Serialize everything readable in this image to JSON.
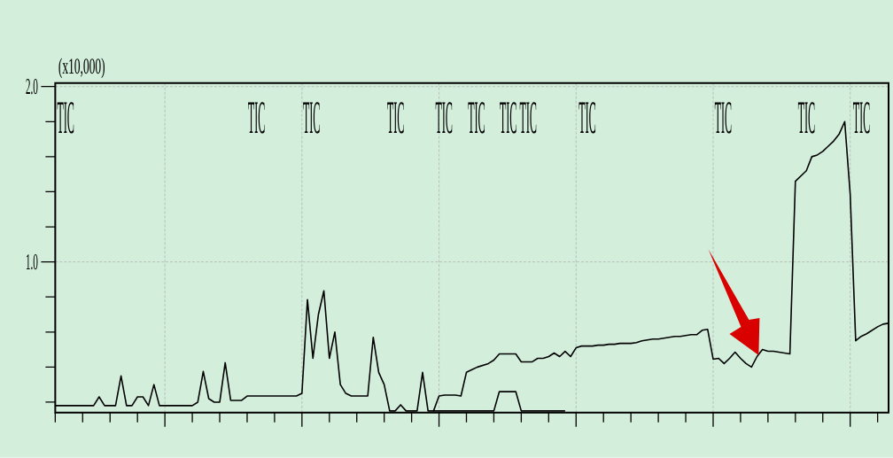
{
  "chart_data": {
    "type": "line",
    "ylabel": "(x10,000)",
    "annotations": [
      "TIC",
      "TIC",
      "TIC",
      "TIC",
      "TIC",
      "TIC",
      "TIC",
      "TIC",
      "TIC",
      "TIC",
      "TIC",
      "TIC"
    ],
    "categories": [
      null,
      null,
      null,
      null,
      null,
      null,
      null,
      null,
      null,
      null,
      null,
      null,
      null,
      null,
      null,
      null,
      null,
      null,
      null,
      null,
      null,
      null,
      null,
      null,
      null,
      null,
      null,
      null,
      null,
      null,
      null,
      null,
      null,
      null,
      null,
      null,
      null,
      null,
      null,
      null,
      null,
      null,
      null,
      null,
      null,
      null,
      null,
      null,
      null,
      null,
      null,
      null,
      null,
      null,
      null,
      null,
      null,
      null,
      null,
      null,
      null,
      null,
      null,
      null,
      null,
      null,
      null,
      null,
      null,
      null,
      null,
      null,
      null,
      null,
      null,
      null,
      null,
      null,
      null,
      null,
      null,
      null,
      null,
      null,
      null,
      null,
      null,
      null,
      null,
      null,
      null,
      null,
      null,
      null,
      null,
      null,
      null,
      null,
      null,
      null,
      null,
      null,
      null,
      null,
      null,
      null,
      null,
      null,
      null,
      null,
      null,
      null,
      null,
      null,
      null,
      null,
      null,
      null,
      null,
      null,
      null,
      null,
      null,
      null,
      null,
      null,
      null,
      null,
      null,
      null,
      null,
      null,
      null,
      null,
      null,
      null,
      null,
      null,
      null,
      null,
      null,
      null,
      null,
      null,
      null,
      null,
      null,
      null,
      null,
      null,
      null,
      null,
      null
    ],
    "series": [
      {
        "color": "#000000",
        "values": [
          0.18,
          0.18,
          0.18,
          0.18,
          0.18,
          0.18,
          0.18,
          0.18,
          0.23,
          0.18,
          0.18,
          0.18,
          0.35,
          0.18,
          0.18,
          0.23,
          0.23,
          0.18,
          0.3,
          0.18,
          0.18,
          0.18,
          0.18,
          0.18,
          0.18,
          0.18,
          0.2,
          0.375,
          0.22,
          0.2,
          0.2,
          0.425,
          0.21,
          0.21,
          0.21,
          0.235,
          0.235,
          0.235,
          0.235,
          0.235,
          0.235,
          0.235,
          0.235,
          0.235,
          0.235,
          0.25,
          0.785,
          0.45,
          0.7,
          0.835,
          0.45,
          0.6,
          0.3,
          0.25,
          0.235,
          0.235,
          0.235,
          0.235,
          0.57,
          0.37,
          0.3,
          0.15,
          0.15,
          0.185,
          0.15,
          0.15,
          0.15,
          0.37,
          0.15,
          0.15,
          0.235,
          0.24,
          0.24,
          0.24,
          0.235,
          0.37,
          0.385,
          0.4,
          0.41,
          0.42,
          0.44,
          0.475,
          0.475,
          0.475,
          0.475,
          0.43,
          0.43,
          0.43,
          0.45,
          0.45,
          0.46,
          0.48,
          0.46,
          0.49,
          0.46,
          0.51,
          0.52,
          0.52,
          0.52,
          0.525,
          0.525,
          0.53,
          0.53,
          0.535,
          0.535,
          0.535,
          0.54,
          0.55,
          0.555,
          0.56,
          0.56,
          0.565,
          0.57,
          0.575,
          0.575,
          0.58,
          0.585,
          0.585,
          0.61,
          0.615,
          0.445,
          0.45,
          0.42,
          0.45,
          0.485,
          0.45,
          0.42,
          0.4,
          0.46,
          0.5,
          0.49,
          0.49,
          0.485,
          0.48,
          0.475,
          1.46,
          1.49,
          1.52,
          1.6,
          1.61,
          1.63,
          1.66,
          1.69,
          1.73,
          1.8,
          1.385,
          0.55,
          0.575,
          0.59,
          0.61,
          0.63,
          0.645,
          0.65
        ]
      },
      {
        "color": "#000000",
        "values": [
          null,
          null,
          null,
          null,
          null,
          null,
          null,
          null,
          null,
          null,
          null,
          null,
          null,
          null,
          null,
          null,
          null,
          null,
          null,
          null,
          null,
          null,
          null,
          null,
          null,
          null,
          null,
          null,
          null,
          null,
          null,
          null,
          null,
          null,
          null,
          null,
          null,
          null,
          null,
          null,
          null,
          null,
          null,
          null,
          null,
          null,
          null,
          null,
          null,
          null,
          null,
          null,
          null,
          null,
          null,
          null,
          null,
          null,
          null,
          null,
          null,
          null,
          null,
          null,
          null,
          null,
          null,
          null,
          null,
          0.15,
          0.15,
          0.15,
          0.15,
          0.15,
          0.15,
          0.15,
          0.15,
          0.15,
          0.15,
          0.15,
          0.15,
          0.26,
          0.26,
          0.26,
          0.26,
          0.15,
          0.15,
          0.15,
          0.15,
          0.15,
          0.15,
          0.15,
          0.15,
          0.15,
          null,
          null,
          null,
          null,
          null,
          null,
          null,
          null,
          null,
          null,
          null,
          null,
          null,
          null,
          null,
          null,
          null,
          null,
          null,
          null,
          null,
          null,
          null,
          null,
          null,
          null,
          null,
          null,
          null,
          null,
          null,
          null,
          null,
          null,
          null,
          null,
          null,
          null,
          null,
          null,
          null,
          null,
          null,
          null,
          null,
          null,
          null,
          null,
          null,
          null,
          null,
          null,
          null,
          null,
          null,
          null,
          null,
          null,
          null
        ]
      }
    ],
    "ylim": [
      0.14,
      2.02
    ],
    "yticks": [
      {
        "value": 1,
        "label": "1.0"
      },
      {
        "value": 2,
        "label": "2.0"
      }
    ],
    "grid": true,
    "legend": false,
    "marker": "none",
    "line_style": "solid"
  }
}
